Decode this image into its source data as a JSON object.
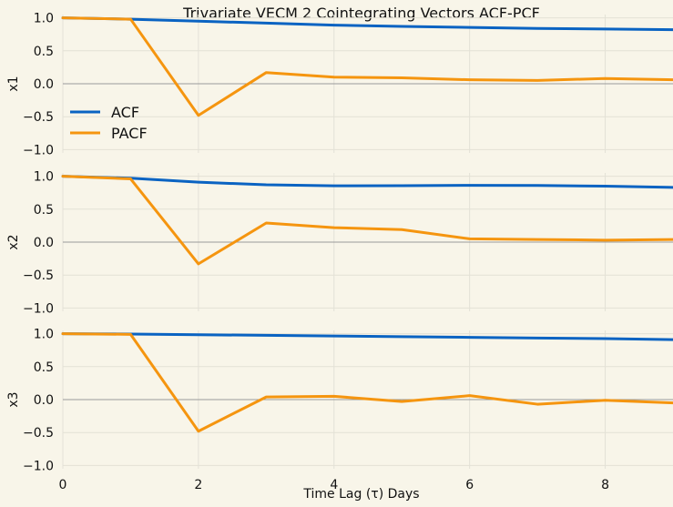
{
  "chart_data": {
    "type": "line",
    "title": "Trivariate VECM 2 Cointegrating Vectors ACF-PCF",
    "xlabel": "Time Lag (τ) Days",
    "x": [
      0,
      1,
      2,
      3,
      4,
      5,
      6,
      7,
      8,
      9
    ],
    "xlim": [
      0,
      9
    ],
    "xticks": [
      "0",
      "2",
      "4",
      "6",
      "8"
    ],
    "ylim": [
      -1.05,
      1.05
    ],
    "yticks": [
      "1.0",
      "0.5",
      "0.0",
      "−0.5",
      "−1.0"
    ],
    "grid": true,
    "legend": {
      "placement": "left",
      "entries": [
        "ACF",
        "PACF"
      ]
    },
    "colors": {
      "ACF": "#0a63c2",
      "PACF": "#f5950f",
      "background": "#f8f5e9"
    },
    "panels": [
      {
        "ylabel": "x1",
        "series": [
          {
            "name": "ACF",
            "values": [
              1.0,
              0.98,
              0.95,
              0.92,
              0.89,
              0.87,
              0.855,
              0.84,
              0.83,
              0.82
            ]
          },
          {
            "name": "PACF",
            "values": [
              1.0,
              0.98,
              -0.48,
              0.17,
              0.1,
              0.09,
              0.06,
              0.05,
              0.08,
              0.06
            ]
          }
        ]
      },
      {
        "ylabel": "x2",
        "series": [
          {
            "name": "ACF",
            "values": [
              1.0,
              0.97,
              0.91,
              0.87,
              0.855,
              0.857,
              0.862,
              0.86,
              0.85,
              0.83
            ]
          },
          {
            "name": "PACF",
            "values": [
              1.0,
              0.96,
              -0.33,
              0.29,
              0.22,
              0.19,
              0.05,
              0.04,
              0.03,
              0.04
            ]
          }
        ]
      },
      {
        "ylabel": "x3",
        "series": [
          {
            "name": "ACF",
            "values": [
              1.0,
              0.995,
              0.985,
              0.975,
              0.965,
              0.955,
              0.945,
              0.935,
              0.925,
              0.91
            ]
          },
          {
            "name": "PACF",
            "values": [
              1.0,
              0.99,
              -0.48,
              0.04,
              0.05,
              -0.03,
              0.06,
              -0.07,
              -0.01,
              -0.05
            ]
          }
        ]
      }
    ]
  }
}
